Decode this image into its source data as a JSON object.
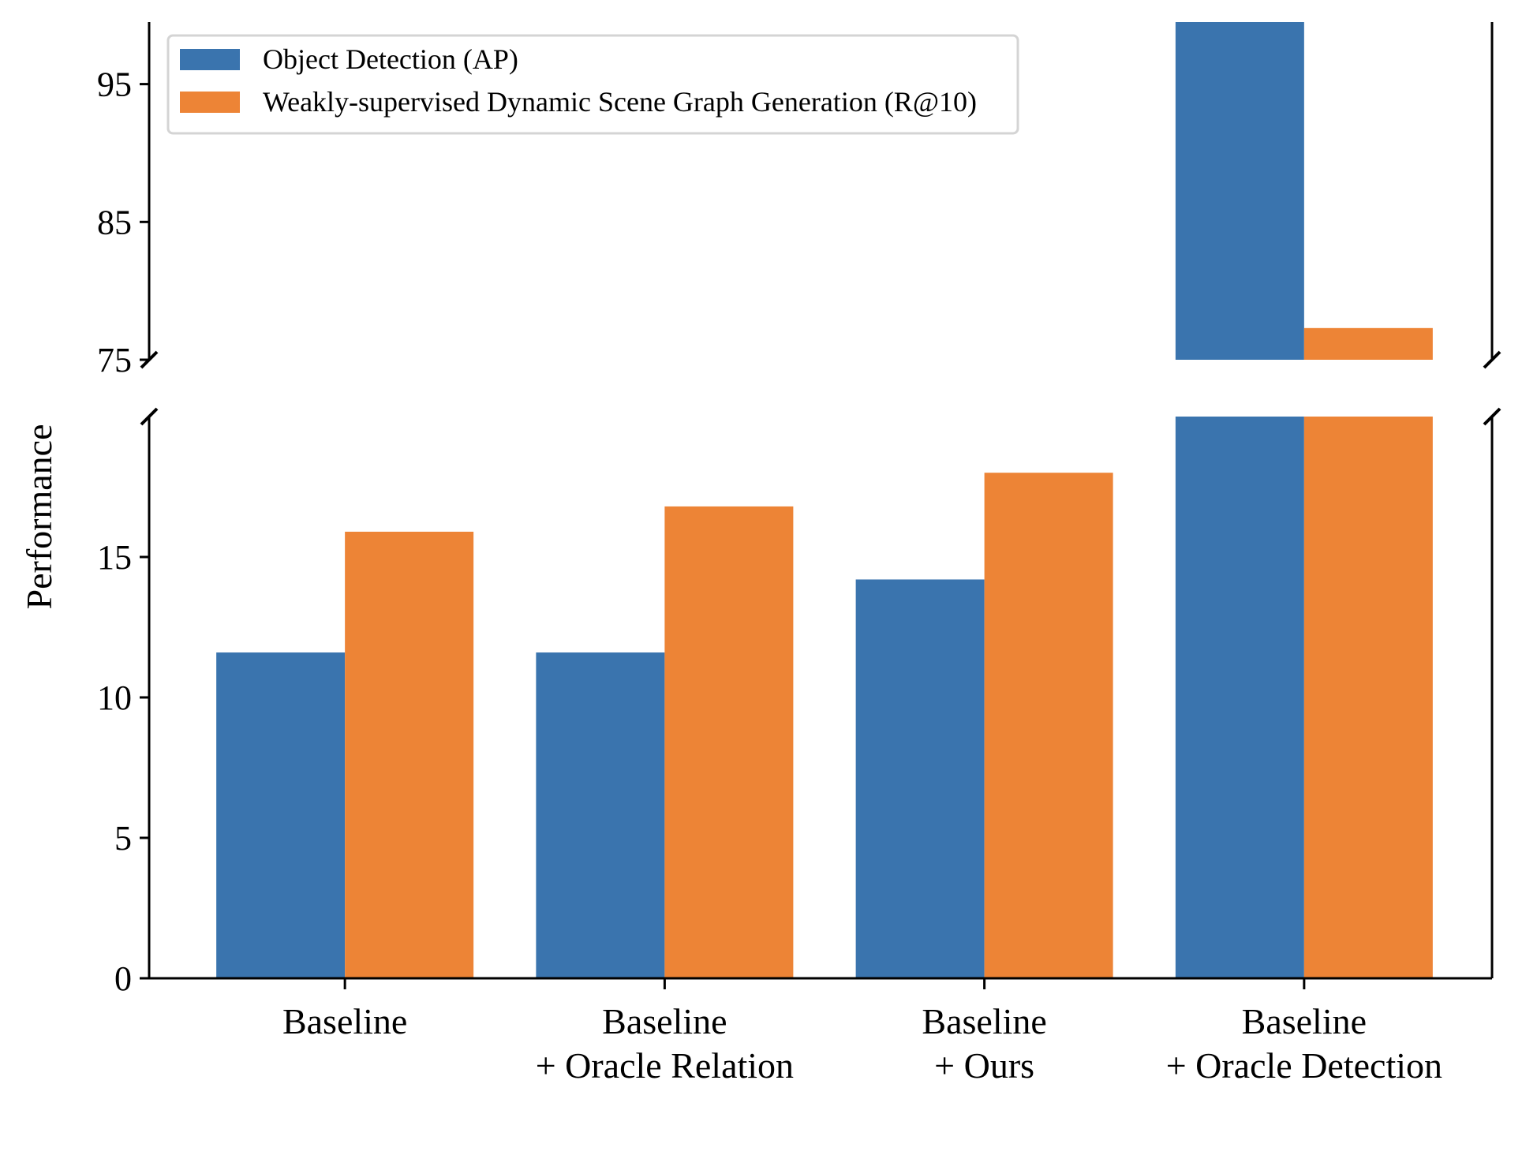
{
  "chart_data": {
    "type": "bar",
    "broken_axis": true,
    "categories": [
      [
        "Baseline"
      ],
      [
        "Baseline",
        "+ Oracle Relation"
      ],
      [
        "Baseline",
        "+ Ours"
      ],
      [
        "Baseline",
        "+ Oracle Detection"
      ]
    ],
    "series": [
      {
        "name": "Object Detection (AP)",
        "color": "#3a74ae",
        "values": [
          11.6,
          11.6,
          14.2,
          100
        ]
      },
      {
        "name": "Weakly-supervised Dynamic Scene Graph Generation (R@10)",
        "color": "#ed8436",
        "values": [
          15.9,
          16.8,
          18.0,
          77.3
        ]
      }
    ],
    "ylabel": "Performance",
    "xlabel": "",
    "title": "",
    "lower_ylim": [
      0,
      20
    ],
    "upper_ylim": [
      75,
      99.5
    ],
    "lower_yticks": [
      "0",
      "5",
      "10",
      "15"
    ],
    "upper_yticks": [
      "75",
      "85",
      "95"
    ],
    "legend_position": "upper-left",
    "grid": false
  }
}
